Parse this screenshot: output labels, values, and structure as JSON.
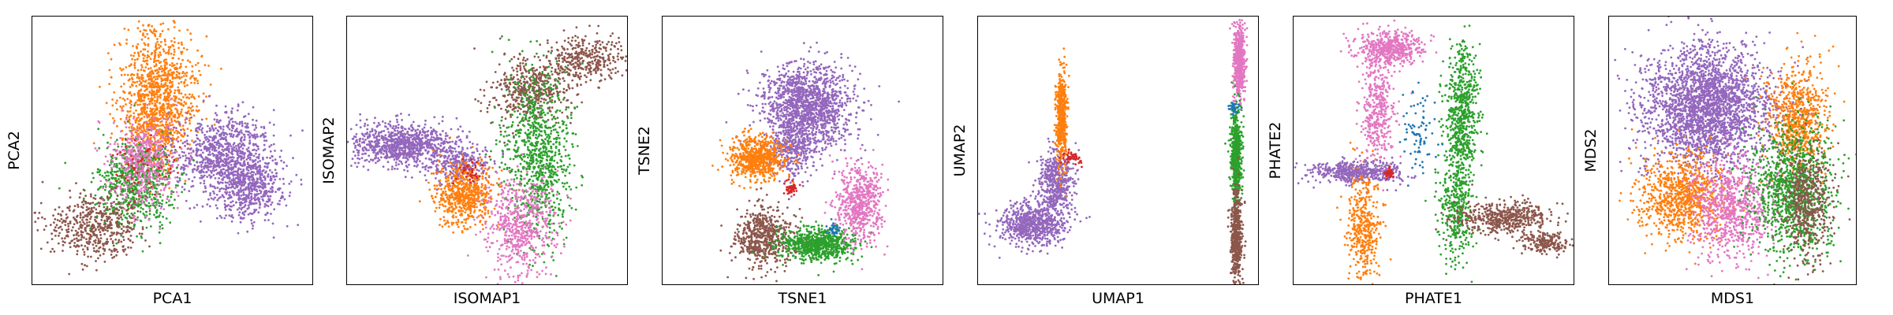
{
  "chart_data": [
    {
      "type": "scatter",
      "xlabel": "PCA1",
      "ylabel": "PCA2",
      "xlim": [
        0,
        100
      ],
      "ylim": [
        0,
        100
      ],
      "ticks": "none",
      "series": [
        {
          "color": "#ff7f0e",
          "clusters": [
            {
              "cx": 45,
              "cy": 73,
              "sx": 7,
              "sy": 11,
              "n": 900
            },
            {
              "cx": 44,
              "cy": 55,
              "sx": 5,
              "sy": 8,
              "n": 300
            }
          ]
        },
        {
          "color": "#9467bd",
          "clusters": [
            {
              "cx": 68,
              "cy": 48,
              "sx": 9,
              "sy": 8,
              "n": 900
            },
            {
              "cx": 78,
              "cy": 36,
              "sx": 6,
              "sy": 6,
              "n": 500
            }
          ]
        },
        {
          "color": "#2ca02c",
          "clusters": [
            {
              "cx": 37,
              "cy": 38,
              "sx": 7,
              "sy": 8,
              "n": 700
            }
          ]
        },
        {
          "color": "#e377c2",
          "clusters": [
            {
              "cx": 40,
              "cy": 45,
              "sx": 6,
              "sy": 8,
              "n": 500
            }
          ]
        },
        {
          "color": "#8c564b",
          "clusters": [
            {
              "cx": 22,
              "cy": 22,
              "sx": 8,
              "sy": 6,
              "n": 500
            }
          ]
        },
        {
          "color": "#d62728",
          "clusters": [
            {
              "cx": 40,
              "cy": 42,
              "sx": 6,
              "sy": 6,
              "n": 60
            }
          ]
        }
      ]
    },
    {
      "type": "scatter",
      "xlabel": "ISOMAP1",
      "ylabel": "ISOMAP2",
      "xlim": [
        0,
        100
      ],
      "ylim": [
        0,
        100
      ],
      "ticks": "none",
      "series": [
        {
          "color": "#8c564b",
          "clusters": [
            {
              "cx": 65,
              "cy": 72,
              "sx": 7,
              "sy": 6,
              "n": 500
            },
            {
              "cx": 85,
              "cy": 84,
              "sx": 7,
              "sy": 4,
              "n": 350
            }
          ]
        },
        {
          "color": "#2ca02c",
          "clusters": [
            {
              "cx": 68,
              "cy": 48,
              "sx": 6,
              "sy": 15,
              "n": 900
            }
          ]
        },
        {
          "color": "#9467bd",
          "clusters": [
            {
              "cx": 20,
              "cy": 52,
              "sx": 9,
              "sy": 4,
              "n": 900
            },
            {
              "cx": 40,
              "cy": 45,
              "sx": 6,
              "sy": 4,
              "n": 300
            }
          ]
        },
        {
          "color": "#ff7f0e",
          "clusters": [
            {
              "cx": 42,
              "cy": 34,
              "sx": 5,
              "sy": 6,
              "n": 600
            }
          ]
        },
        {
          "color": "#e377c2",
          "clusters": [
            {
              "cx": 62,
              "cy": 22,
              "sx": 6,
              "sy": 9,
              "n": 600
            }
          ]
        },
        {
          "color": "#d62728",
          "clusters": [
            {
              "cx": 44,
              "cy": 42,
              "sx": 3,
              "sy": 3,
              "n": 40
            }
          ]
        }
      ]
    },
    {
      "type": "scatter",
      "xlabel": "TSNE1",
      "ylabel": "TSNE2",
      "xlim": [
        0,
        100
      ],
      "ylim": [
        0,
        100
      ],
      "ticks": "none",
      "series": [
        {
          "color": "#9467bd",
          "clusters": [
            {
              "cx": 52,
              "cy": 66,
              "sx": 8,
              "sy": 8,
              "n": 1500
            },
            {
              "cx": 46,
              "cy": 50,
              "sx": 4,
              "sy": 5,
              "n": 300
            }
          ]
        },
        {
          "color": "#ff7f0e",
          "clusters": [
            {
              "cx": 34,
              "cy": 47,
              "sx": 5,
              "sy": 4,
              "n": 700
            }
          ]
        },
        {
          "color": "#8c564b",
          "clusters": [
            {
              "cx": 36,
              "cy": 18,
              "sx": 5,
              "sy": 6,
              "n": 600
            }
          ]
        },
        {
          "color": "#2ca02c",
          "clusters": [
            {
              "cx": 55,
              "cy": 15,
              "sx": 6,
              "sy": 3,
              "n": 800
            }
          ]
        },
        {
          "color": "#e377c2",
          "clusters": [
            {
              "cx": 70,
              "cy": 30,
              "sx": 4,
              "sy": 7,
              "n": 600
            }
          ]
        },
        {
          "color": "#d62728",
          "clusters": [
            {
              "cx": 46,
              "cy": 36,
              "sx": 1,
              "sy": 1,
              "n": 50
            }
          ]
        },
        {
          "color": "#1f77b4",
          "clusters": [
            {
              "cx": 61,
              "cy": 21,
              "sx": 1,
              "sy": 1,
              "n": 40
            }
          ]
        }
      ]
    },
    {
      "type": "scatter",
      "xlabel": "UMAP1",
      "ylabel": "UMAP2",
      "xlim": [
        0,
        100
      ],
      "ylim": [
        0,
        100
      ],
      "ticks": "none",
      "series": [
        {
          "color": "#9467bd",
          "clusters": [
            {
              "cx": 20,
              "cy": 23,
              "sx": 6,
              "sy": 4,
              "n": 700
            },
            {
              "cx": 28,
              "cy": 38,
              "sx": 3,
              "sy": 6,
              "n": 500
            }
          ]
        },
        {
          "color": "#ff7f0e",
          "clusters": [
            {
              "cx": 30,
              "cy": 62,
              "sx": 1,
              "sy": 9,
              "n": 500
            }
          ]
        },
        {
          "color": "#e377c2",
          "clusters": [
            {
              "cx": 93,
              "cy": 83,
              "sx": 1,
              "sy": 7,
              "n": 600
            }
          ]
        },
        {
          "color": "#2ca02c",
          "clusters": [
            {
              "cx": 92,
              "cy": 48,
              "sx": 1,
              "sy": 9,
              "n": 600
            }
          ]
        },
        {
          "color": "#8c564b",
          "clusters": [
            {
              "cx": 92,
              "cy": 17,
              "sx": 1,
              "sy": 9,
              "n": 500
            }
          ]
        },
        {
          "color": "#d62728",
          "clusters": [
            {
              "cx": 34,
              "cy": 47,
              "sx": 2,
              "sy": 1,
              "n": 50
            }
          ]
        },
        {
          "color": "#1f77b4",
          "clusters": [
            {
              "cx": 91,
              "cy": 66,
              "sx": 1,
              "sy": 1,
              "n": 40
            }
          ]
        }
      ]
    },
    {
      "type": "scatter",
      "xlabel": "PHATE1",
      "ylabel": "PHATE2",
      "xlim": [
        0,
        100
      ],
      "ylim": [
        0,
        100
      ],
      "ticks": "none",
      "series": [
        {
          "color": "#e377c2",
          "clusters": [
            {
              "cx": 35,
              "cy": 88,
              "sx": 6,
              "sy": 3,
              "n": 500
            },
            {
              "cx": 30,
              "cy": 65,
              "sx": 3,
              "sy": 10,
              "n": 400
            }
          ]
        },
        {
          "color": "#2ca02c",
          "clusters": [
            {
              "cx": 60,
              "cy": 65,
              "sx": 3,
              "sy": 12,
              "n": 600
            },
            {
              "cx": 58,
              "cy": 30,
              "sx": 3,
              "sy": 10,
              "n": 400
            }
          ]
        },
        {
          "color": "#9467bd",
          "clusters": [
            {
              "cx": 22,
              "cy": 42,
              "sx": 8,
              "sy": 2,
              "n": 500
            }
          ]
        },
        {
          "color": "#ff7f0e",
          "clusters": [
            {
              "cx": 25,
              "cy": 22,
              "sx": 3,
              "sy": 10,
              "n": 400
            }
          ]
        },
        {
          "color": "#8c564b",
          "clusters": [
            {
              "cx": 75,
              "cy": 25,
              "sx": 8,
              "sy": 3,
              "n": 500
            },
            {
              "cx": 90,
              "cy": 16,
              "sx": 4,
              "sy": 2,
              "n": 200
            }
          ]
        },
        {
          "color": "#d62728",
          "clusters": [
            {
              "cx": 34,
              "cy": 42,
              "sx": 1,
              "sy": 1,
              "n": 40
            }
          ]
        },
        {
          "color": "#1f77b4",
          "clusters": [
            {
              "cx": 45,
              "cy": 58,
              "sx": 3,
              "sy": 8,
              "n": 80
            }
          ]
        }
      ]
    },
    {
      "type": "scatter",
      "xlabel": "MDS1",
      "ylabel": "MDS2",
      "xlim": [
        0,
        100
      ],
      "ylim": [
        0,
        100
      ],
      "ticks": "none",
      "series": [
        {
          "color": "#9467bd",
          "clusters": [
            {
              "cx": 40,
              "cy": 66,
              "sx": 13,
              "sy": 11,
              "n": 2600
            }
          ]
        },
        {
          "color": "#ff7f0e",
          "clusters": [
            {
              "cx": 30,
              "cy": 33,
              "sx": 9,
              "sy": 8,
              "n": 900
            },
            {
              "cx": 76,
              "cy": 62,
              "sx": 6,
              "sy": 10,
              "n": 700
            }
          ]
        },
        {
          "color": "#e377c2",
          "clusters": [
            {
              "cx": 50,
              "cy": 28,
              "sx": 8,
              "sy": 9,
              "n": 800
            }
          ]
        },
        {
          "color": "#2ca02c",
          "clusters": [
            {
              "cx": 74,
              "cy": 35,
              "sx": 8,
              "sy": 12,
              "n": 1100
            }
          ]
        },
        {
          "color": "#8c564b",
          "clusters": [
            {
              "cx": 80,
              "cy": 30,
              "sx": 5,
              "sy": 10,
              "n": 500
            }
          ]
        }
      ]
    }
  ]
}
